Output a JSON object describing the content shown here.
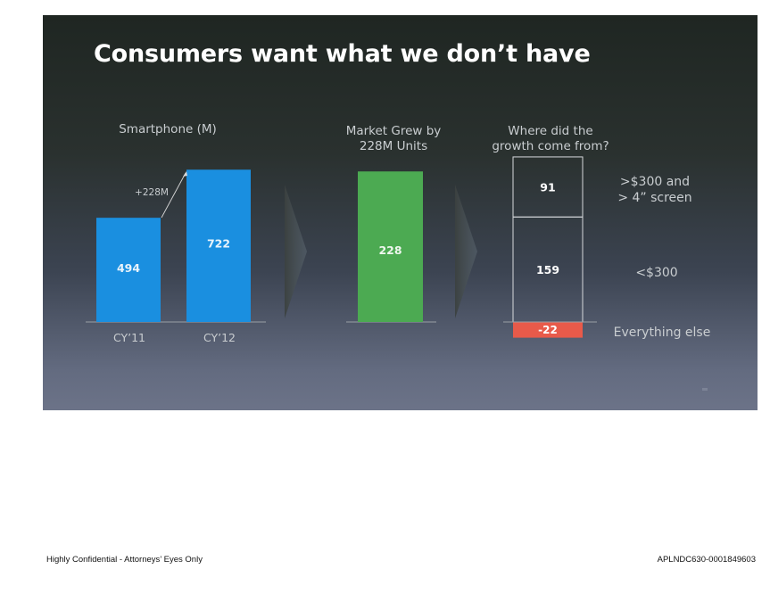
{
  "slide": {
    "title": "Consumers want what we don’t have"
  },
  "chart_data": [
    {
      "type": "bar",
      "title": "Smartphone (M)",
      "categories": [
        "CY’11",
        "CY’12"
      ],
      "values": [
        494,
        722
      ],
      "value_labels": [
        "494",
        "722"
      ],
      "annotation": "+228M",
      "colors": [
        "#1a8fe0"
      ]
    },
    {
      "type": "bar",
      "title": "Market Grew by 228M Units",
      "title_lines": [
        "Market Grew by",
        "228M Units"
      ],
      "values": [
        228
      ],
      "value_labels": [
        "228"
      ],
      "colors": [
        "#4caa52"
      ]
    },
    {
      "type": "bar",
      "title": "Where did the growth come from?",
      "title_lines": [
        "Where did the",
        "growth come from?"
      ],
      "segments": [
        {
          "name": ">$300 and > 4\" screen",
          "name_lines": [
            ">$300 and",
            "> 4” screen"
          ],
          "value": 91,
          "label": "91"
        },
        {
          "name": "<$300",
          "name_lines": [
            "<$300"
          ],
          "value": 159,
          "label": "159"
        },
        {
          "name": "Everything else",
          "name_lines": [
            "Everything else"
          ],
          "value": -22,
          "label": "-22",
          "color": "#e85a4a"
        }
      ]
    }
  ],
  "footer": {
    "left": "Highly Confidential - Attorneys’ Eyes Only",
    "right": "APLNDC630-0001849603"
  }
}
